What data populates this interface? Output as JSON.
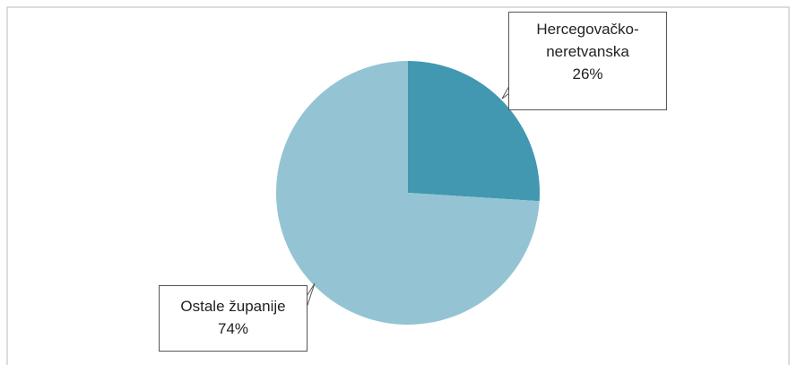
{
  "chart_data": {
    "type": "pie",
    "categories": [
      "Hercegovačko-neretvanska",
      "Ostale županije"
    ],
    "values": [
      26,
      74
    ],
    "value_labels": [
      "26%",
      "74%"
    ],
    "colors": [
      "#4198b0",
      "#94c4d4"
    ]
  }
}
